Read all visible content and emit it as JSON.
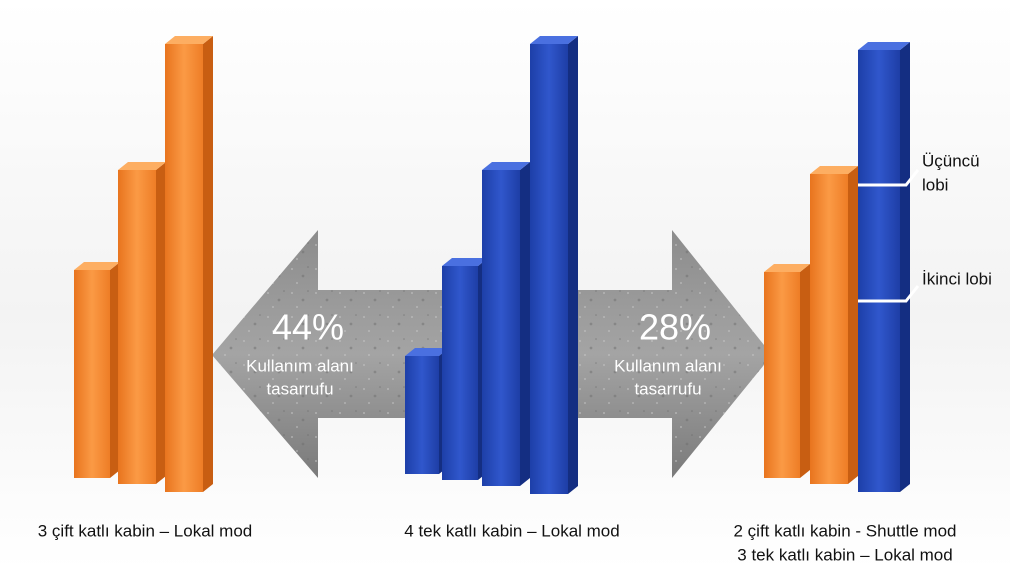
{
  "groups": [
    {
      "caption_lines": [
        "3 çift katlı kabin – Lokal mod"
      ]
    },
    {
      "caption_lines": [
        "4 tek katlı kabin – Lokal mod"
      ]
    },
    {
      "caption_lines": [
        "2 çift katlı kabin - Shuttle mod",
        "3 tek katlı kabin – Lokal mod"
      ]
    }
  ],
  "arrows": [
    {
      "percent": "44%",
      "label_lines": [
        "Kullanım alanı",
        "tasarrufu"
      ]
    },
    {
      "percent": "28%",
      "label_lines": [
        "Kullanım alanı",
        "tasarrufu"
      ]
    }
  ],
  "annotations": [
    {
      "lines": [
        "Üçüncü",
        "lobi"
      ]
    },
    {
      "lines": [
        "İkinci lobi"
      ]
    }
  ]
}
